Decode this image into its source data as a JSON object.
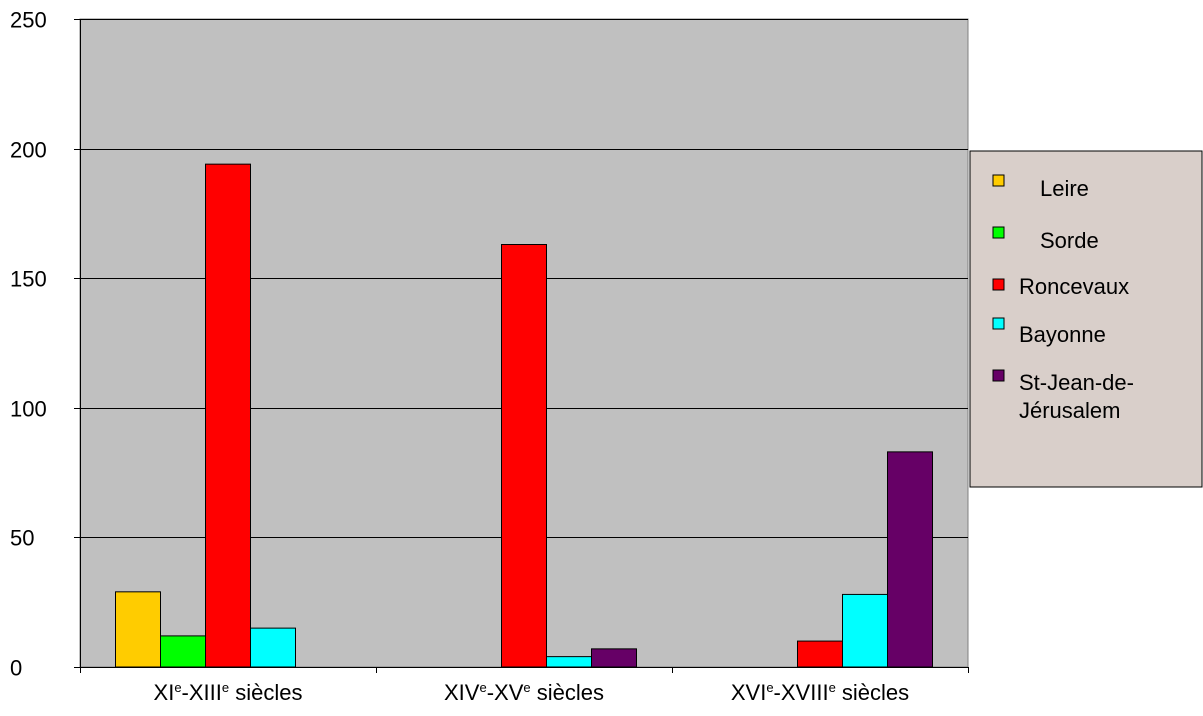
{
  "chart_data": {
    "type": "bar",
    "categories": [
      {
        "base1": "XI",
        "sup1": "e",
        "sep": "-",
        "base2": "XIII",
        "sup2": "e",
        "tail": " siècles"
      },
      {
        "base1": "XIV",
        "sup1": "e",
        "sep": "-",
        "base2": "XV",
        "sup2": "e",
        "tail": " siècles"
      },
      {
        "base1": "XVI",
        "sup1": "e",
        "sep": "-",
        "base2": "XVIII",
        "sup2": "e",
        "tail": " siècles"
      }
    ],
    "series": [
      {
        "name": "Leire",
        "color": "#FFCC00",
        "values": [
          29,
          0,
          0
        ]
      },
      {
        "name": "Sorde",
        "color": "#00FF00",
        "values": [
          12,
          0,
          0
        ]
      },
      {
        "name": "Roncevaux",
        "color": "#FF0000",
        "values": [
          194,
          163,
          10
        ]
      },
      {
        "name": "Bayonne",
        "color": "#00FFFF",
        "values": [
          15,
          4,
          28
        ]
      },
      {
        "name": "St-Jean-de-Jérusalem",
        "color": "#660066",
        "values": [
          0,
          7,
          83
        ]
      }
    ],
    "legend_lines": [
      [
        "Leire"
      ],
      [
        "Sorde"
      ],
      [
        "Roncevaux"
      ],
      [
        "Bayonne"
      ],
      [
        "St-Jean-de-",
        "Jérusalem"
      ]
    ],
    "ylim": [
      0,
      250
    ],
    "yticks": [
      0,
      50,
      100,
      150,
      200,
      250
    ],
    "grid": true,
    "legend_position": "right",
    "plot_background": "#C0C0C0",
    "legend_background": "#D9CFCA"
  }
}
